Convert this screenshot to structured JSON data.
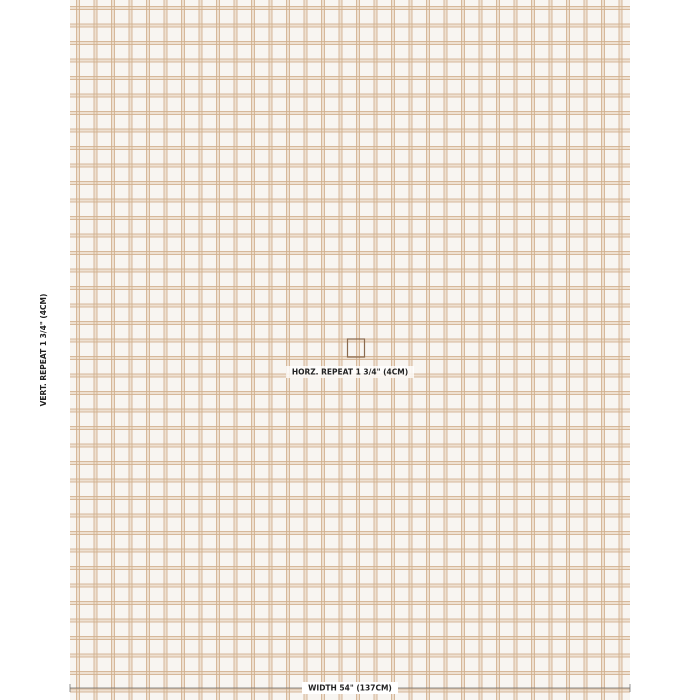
{
  "labels": {
    "vertical_repeat": "VERT. REPEAT 1 3/4\" (4CM)",
    "horizontal_repeat": "HORZ. REPEAT 1 3/4\" (4CM)",
    "width": "WIDTH 54\" (137CM)"
  }
}
